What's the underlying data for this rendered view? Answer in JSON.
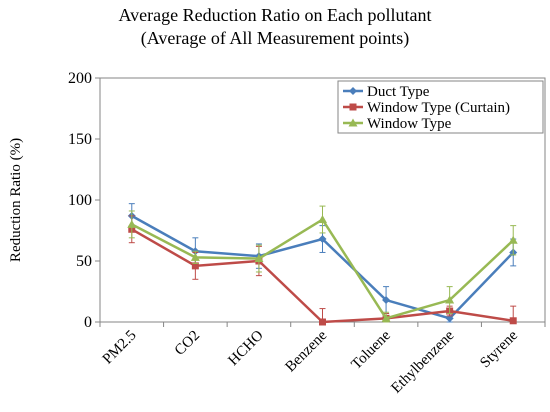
{
  "chart_data": {
    "type": "line",
    "title_lines": [
      "Average Reduction Ratio on Each pollutant",
      "(Average of All Measurement points)"
    ],
    "xlabel": "",
    "ylabel": "Reduction Ratio (%)",
    "ylim": [
      0,
      200
    ],
    "yticks": [
      0,
      50,
      100,
      150,
      200
    ],
    "categories": [
      "PM2.5",
      "CO2",
      "HCHO",
      "Benzene",
      "Toluene",
      "Ethylbenzene",
      "Styrene"
    ],
    "grid": false,
    "legend_position": "top-right",
    "series": [
      {
        "name": "Duct Type",
        "color": "#4a7ebb",
        "marker": "diamond",
        "values": [
          87,
          58,
          54,
          68,
          18,
          3,
          57
        ],
        "errors": [
          10,
          11,
          10,
          11,
          11,
          5,
          11
        ]
      },
      {
        "name": "Window Type (Curtain)",
        "color": "#be4b48",
        "marker": "square",
        "values": [
          76,
          46,
          50,
          0,
          3,
          9,
          1
        ],
        "errors": [
          11,
          11,
          12,
          11,
          4,
          4,
          12
        ]
      },
      {
        "name": "Window Type",
        "color": "#98b954",
        "marker": "triangle",
        "values": [
          80,
          53,
          52,
          84,
          3,
          18,
          67
        ],
        "errors": [
          11,
          5,
          11,
          11,
          5,
          11,
          12
        ]
      }
    ]
  }
}
